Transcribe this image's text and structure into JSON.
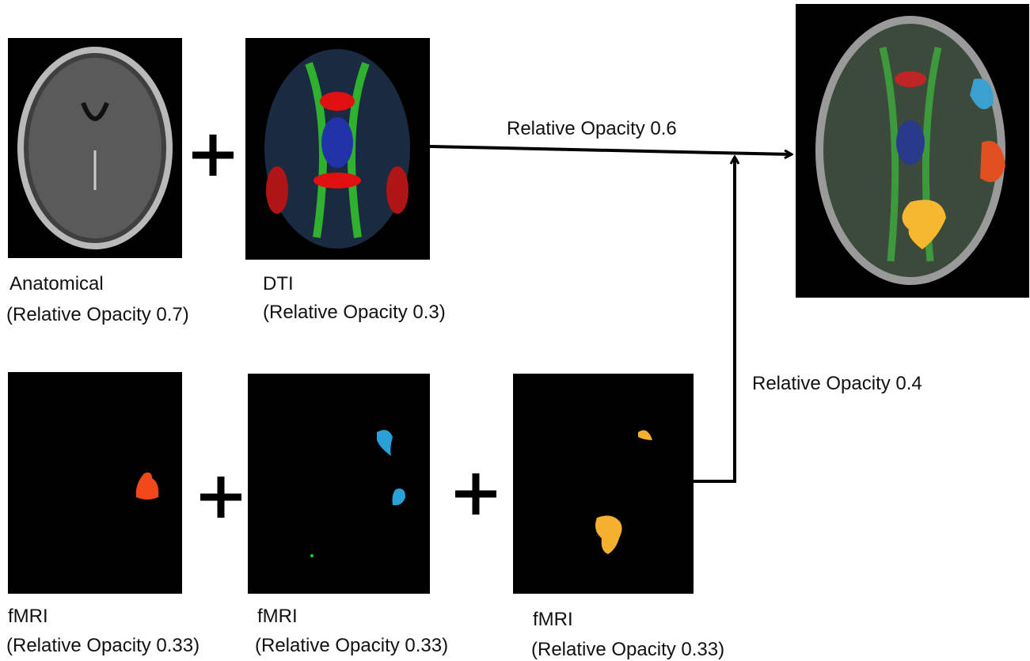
{
  "anatomical": {
    "label": "Anatomical",
    "opacity": "(Relative Opacity 0.7)"
  },
  "dti": {
    "label": "DTI",
    "opacity": "(Relative Opacity 0.3)"
  },
  "fmri": [
    {
      "label": "fMRI",
      "opacity": "(Relative Opacity 0.33)"
    },
    {
      "label": "fMRI",
      "opacity": "(Relative Opacity 0.33)"
    },
    {
      "label": "fMRI",
      "opacity": "(Relative Opacity 0.33)"
    }
  ],
  "edges": {
    "structural": "Relative Opacity 0.6",
    "functional": "Relative Opacity 0.4"
  }
}
